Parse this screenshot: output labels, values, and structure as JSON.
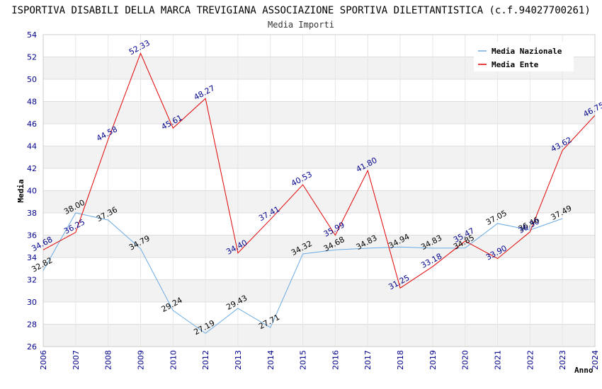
{
  "title": "ISPORTIVA DISABILI DELLA MARCA TREVIGIANA ASSOCIAZIONE SPORTIVA DILETTANTISTICA (c.f.94027700261)",
  "subtitle": "Media Importi",
  "chart_data": {
    "type": "line",
    "title": "ISPORTIVA DISABILI DELLA MARCA TREVIGIANA ASSOCIAZIONE SPORTIVA DILETTANTISTICA (c.f.94027700261)",
    "subtitle": "Media Importi",
    "xlabel": "Anno",
    "ylabel": "Media",
    "ylim": [
      26,
      54
    ],
    "y_ticks": [
      "26",
      "28",
      "30",
      "32",
      "34",
      "36",
      "38",
      "40",
      "42",
      "44",
      "46",
      "48",
      "50",
      "52",
      "54"
    ],
    "categories": [
      "2006",
      "2007",
      "2008",
      "2009",
      "2010",
      "2012",
      "2013",
      "2014",
      "2015",
      "2016",
      "2017",
      "2018",
      "2019",
      "2020",
      "2021",
      "2022",
      "2023",
      "2024"
    ],
    "grid": true,
    "legend_position": "top-right",
    "series": [
      {
        "name": "Media Nazionale",
        "color": "#6aaae4",
        "values": [
          32.82,
          38.0,
          37.36,
          34.79,
          29.24,
          27.19,
          29.43,
          27.71,
          34.32,
          34.68,
          34.83,
          34.94,
          34.83,
          34.85,
          37.05,
          36.46,
          37.49,
          null
        ],
        "labels": [
          "32.82",
          "38.00",
          "37.36",
          "34.79",
          "29.24",
          "27.19",
          "29.43",
          "27.71",
          "34.32",
          "34.68",
          "34.83",
          "34.94",
          "34.83",
          "34.85",
          "37.05",
          "36.46",
          "37.49",
          ""
        ]
      },
      {
        "name": "Media Ente",
        "color": "#e00000",
        "values": [
          34.68,
          36.25,
          44.58,
          52.33,
          45.61,
          48.27,
          34.4,
          37.41,
          40.53,
          35.99,
          41.8,
          31.25,
          33.18,
          35.47,
          33.9,
          36.3,
          43.62,
          46.75
        ],
        "labels": [
          "34.68",
          "36.25",
          "44.58",
          "52.33",
          "45.61",
          "48.27",
          "34.40",
          "37.41",
          "40.53",
          "35.99",
          "41.80",
          "31.25",
          "33.18",
          "35.47",
          "33.90",
          "36.30",
          "43.62",
          "46.75"
        ]
      }
    ]
  }
}
